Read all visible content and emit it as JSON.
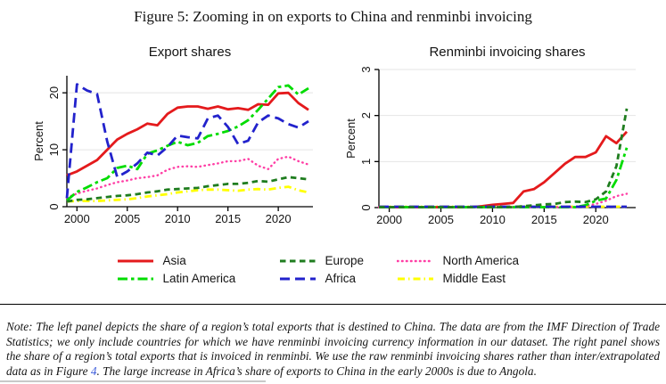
{
  "figure_title": "Figure 5: Zooming in on exports to China and renminbi invoicing",
  "series_styles": [
    {
      "name": "Asia",
      "color": "#e41a1c",
      "dash": "",
      "width": 2.8,
      "cap": "butt"
    },
    {
      "name": "Europe",
      "color": "#1f7d1f",
      "dash": "6.5 4.5",
      "width": 2.8,
      "cap": "butt"
    },
    {
      "name": "North America",
      "color": "#ff3ea5",
      "dash": "0.5 4.5",
      "width": 2.4,
      "cap": "round"
    },
    {
      "name": "Latin America",
      "color": "#00dc00",
      "dash": "11 4 3.5 4",
      "width": 2.8,
      "cap": "butt"
    },
    {
      "name": "Africa",
      "color": "#2222cc",
      "dash": "11 6",
      "width": 2.8,
      "cap": "butt"
    },
    {
      "name": "Middle East",
      "color": "#ffff00",
      "dash": "8 4 1.5 4",
      "width": 2.8,
      "cap": "butt"
    }
  ],
  "legend": {
    "rows": [
      [
        "Asia",
        "Europe",
        "North America"
      ],
      [
        "Latin America",
        "Africa",
        "Middle East"
      ]
    ]
  },
  "chart_data": [
    {
      "type": "line",
      "title": "Export shares",
      "ylabel": "Percent",
      "xlabel": "",
      "ylim": [
        0,
        23
      ],
      "yticks": [
        0,
        10,
        20
      ],
      "xticks": [
        2000,
        2005,
        2010,
        2015,
        2020
      ],
      "grid": true,
      "legend_position": "bottom-shared",
      "x": [
        1999,
        2000,
        2001,
        2002,
        2003,
        2004,
        2005,
        2006,
        2007,
        2008,
        2009,
        2010,
        2011,
        2012,
        2013,
        2014,
        2015,
        2016,
        2017,
        2018,
        2019,
        2020,
        2021,
        2022,
        2023
      ],
      "draw_order": [
        "Middle East",
        "North America",
        "Asia",
        "Latin America",
        "Africa",
        "Europe"
      ],
      "series": [
        {
          "name": "Asia",
          "values": [
            5.5,
            6.2,
            7.2,
            8.2,
            10.0,
            11.8,
            12.8,
            13.6,
            14.6,
            14.3,
            16.3,
            17.4,
            17.6,
            17.6,
            17.2,
            17.6,
            17.1,
            17.3,
            17.0,
            18.0,
            17.9,
            19.9,
            20.0,
            18.2,
            17.0
          ]
        },
        {
          "name": "Europe",
          "values": [
            0.9,
            1.2,
            1.3,
            1.5,
            1.7,
            1.9,
            2.0,
            2.2,
            2.5,
            2.7,
            3.0,
            3.1,
            3.2,
            3.3,
            3.6,
            3.8,
            4.0,
            4.0,
            4.2,
            4.5,
            4.4,
            4.8,
            5.2,
            5.0,
            4.8
          ]
        },
        {
          "name": "North America",
          "values": [
            1.6,
            2.3,
            2.8,
            3.2,
            3.8,
            4.3,
            4.6,
            5.0,
            5.2,
            5.5,
            6.5,
            7.0,
            7.1,
            7.0,
            7.3,
            7.6,
            8.0,
            8.0,
            8.4,
            7.2,
            6.6,
            8.4,
            8.8,
            8.0,
            7.4
          ]
        },
        {
          "name": "Latin America",
          "values": [
            1.1,
            2.6,
            3.4,
            4.3,
            5.0,
            6.8,
            7.2,
            6.6,
            9.3,
            9.9,
            10.7,
            11.4,
            10.8,
            11.2,
            12.4,
            12.8,
            13.3,
            14.1,
            15.2,
            17.0,
            19.0,
            21.0,
            21.3,
            19.7,
            20.8
          ]
        },
        {
          "name": "Africa",
          "values": [
            1.5,
            21.5,
            20.4,
            19.8,
            11.5,
            5.2,
            6.2,
            7.6,
            9.5,
            9.0,
            10.5,
            12.5,
            12.2,
            12.0,
            15.5,
            16.0,
            14.0,
            11.0,
            11.6,
            14.8,
            16.0,
            15.5,
            14.5,
            13.9,
            15.0
          ]
        },
        {
          "name": "Middle East",
          "values": [
            0.9,
            1.0,
            1.0,
            1.0,
            1.1,
            1.2,
            1.3,
            1.5,
            1.8,
            2.0,
            2.2,
            2.5,
            2.7,
            2.9,
            3.0,
            3.0,
            2.9,
            2.8,
            3.0,
            3.1,
            3.0,
            3.3,
            3.5,
            2.9,
            2.5
          ]
        }
      ]
    },
    {
      "type": "line",
      "title": "Renminbi invoicing shares",
      "ylabel": "Percent",
      "xlabel": "",
      "ylim": [
        0,
        3
      ],
      "yticks": [
        0,
        1,
        2,
        3
      ],
      "xticks": [
        2000,
        2005,
        2010,
        2015,
        2020
      ],
      "grid": true,
      "legend_position": "bottom-shared",
      "x": [
        1999,
        2000,
        2001,
        2002,
        2003,
        2004,
        2005,
        2006,
        2007,
        2008,
        2009,
        2010,
        2011,
        2012,
        2013,
        2014,
        2015,
        2016,
        2017,
        2018,
        2019,
        2020,
        2021,
        2022,
        2023
      ],
      "draw_order": [
        "Middle East",
        "North America",
        "Asia",
        "Latin America",
        "Africa",
        "Europe"
      ],
      "series": [
        {
          "name": "Asia",
          "values": [
            0.01,
            0.01,
            0.01,
            0.01,
            0.01,
            0.01,
            0.01,
            0.01,
            0.01,
            0.01,
            0.03,
            0.06,
            0.08,
            0.1,
            0.35,
            0.4,
            0.55,
            0.75,
            0.95,
            1.1,
            1.1,
            1.2,
            1.55,
            1.4,
            1.65
          ]
        },
        {
          "name": "Europe",
          "values": [
            0.01,
            0.01,
            0.01,
            0.01,
            0.01,
            0.01,
            0.01,
            0.01,
            0.01,
            0.01,
            0.01,
            0.01,
            0.01,
            0.01,
            0.03,
            0.05,
            0.07,
            0.08,
            0.12,
            0.13,
            0.12,
            0.18,
            0.35,
            0.9,
            2.15
          ]
        },
        {
          "name": "North America",
          "values": [
            0.01,
            0.01,
            0.01,
            0.01,
            0.01,
            0.01,
            0.01,
            0.01,
            0.01,
            0.01,
            0.01,
            0.01,
            0.01,
            0.01,
            0.01,
            0.01,
            0.01,
            0.01,
            0.01,
            0.01,
            0.03,
            0.08,
            0.15,
            0.25,
            0.3
          ]
        },
        {
          "name": "Latin America",
          "values": [
            0.01,
            0.01,
            0.01,
            0.01,
            0.01,
            0.01,
            0.01,
            0.01,
            0.01,
            0.01,
            0.01,
            0.01,
            0.01,
            0.01,
            0.01,
            0.01,
            0.01,
            0.01,
            0.01,
            0.01,
            0.05,
            0.15,
            0.2,
            0.6,
            1.3
          ]
        },
        {
          "name": "Africa",
          "values": [
            0.02,
            0.02,
            0.02,
            0.02,
            0.02,
            0.02,
            0.02,
            0.02,
            0.02,
            0.02,
            0.02,
            0.02,
            0.02,
            0.02,
            0.02,
            0.02,
            0.02,
            0.02,
            0.02,
            0.02,
            0.02,
            0.02,
            0.02,
            0.02,
            0.02
          ]
        },
        {
          "name": "Middle East",
          "values": [
            0.02,
            0.02,
            0.02,
            0.02,
            0.02,
            0.02,
            0.02,
            0.02,
            0.02,
            0.02,
            0.02,
            0.02,
            0.02,
            0.02,
            0.02,
            0.02,
            0.02,
            0.02,
            0.02,
            0.02,
            0.02,
            0.02,
            0.02,
            0.02,
            0.02
          ]
        }
      ]
    }
  ],
  "note": {
    "prefix": "Note:",
    "before_link": " The left panel depicts the share of a region’s total exports that is destined to China. The data are from the IMF Direction of Trade Statistics; we only include countries for which we have renminbi invoicing currency information in our dataset. The right panel shows the share of a region’s total exports that is invoiced in renminbi. We use the raw renminbi invoicing shares rather than inter/extrapolated data as in Figure ",
    "link_text": "4",
    "after_link": ". The large increase in Africa’s share of exports to China in the early 2000s is due to Angola."
  },
  "colors": {
    "grid": "#e4e4e4",
    "axis": "#000000",
    "link": "#3b5bdb"
  }
}
